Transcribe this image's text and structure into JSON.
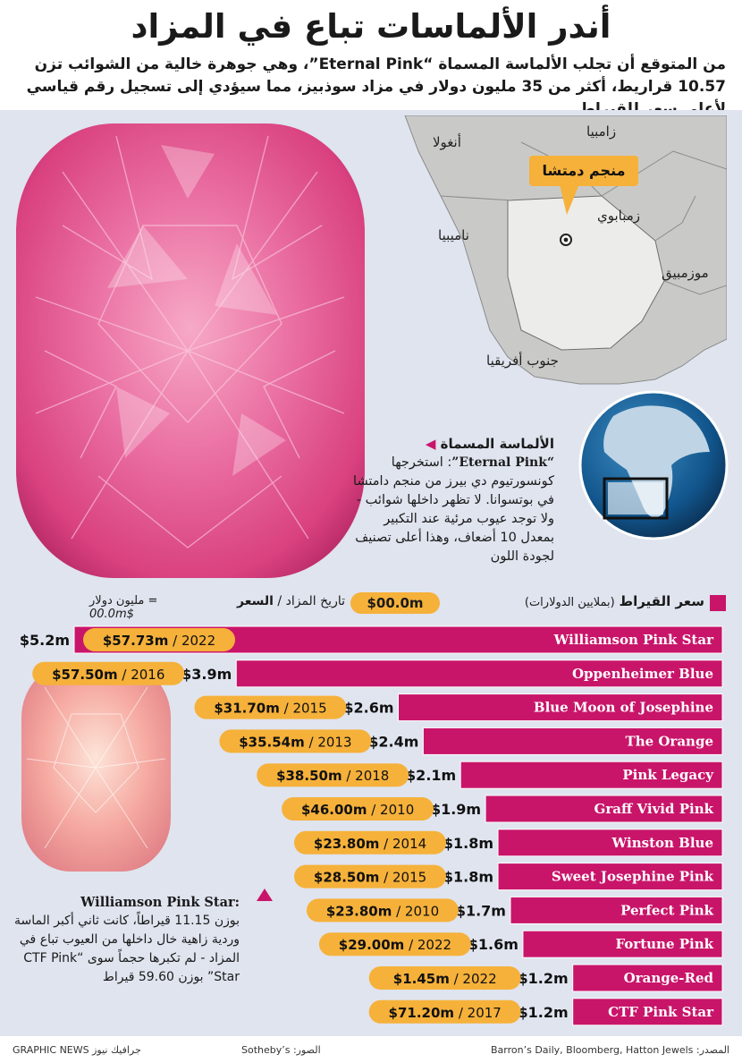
{
  "title": "أندر الألماسات تباع في المزاد",
  "subtitle": "من المتوقع أن تجلب الألماسة المسماة “Eternal Pink”، وهي جوهرة خالية من الشوائب تزن 10.57 قراريط، أكثر من 35 مليون دولار في مزاد سوذبيز، مما سيؤدي إلى تسجيل رقم قياسي لأعلى سعر للقيراط",
  "map": {
    "labels": [
      "زامبيا",
      "أنغولا",
      "زمبابوي",
      "ناميبيا",
      "موزمبيق",
      "جنوب أفريقيا"
    ],
    "mine_label": "منجم دمتشا"
  },
  "eternal_pink": {
    "heading": "الألماسة المسماة",
    "name": "“Eternal Pink”",
    "text": ": استخرجها كونسورتيوم دي بيرز من منجم دامتشا في بوتسوانا. لا تظهر داخلها شوائب - ولا توجد عيوب مرئية عند التكبير بمعدل 10 أضعاف، وهذا أعلى تصنيف لجودة اللون"
  },
  "williamson": {
    "name": "Williamson Pink Star:",
    "text": "بوزن 11.15 قيراطاً، كانت ثاني أكبر الماسة وردية زاهية خال داخلها من العيوب تباع في المزاد - لم تكبرها حجماً سوى “CTF Pink Star” بوزن 59.60 قيراط"
  },
  "legend": {
    "ppc_label": "سعر القيراط",
    "ppc_unit": "(بملايين الدولارات)",
    "price_label": "السعر",
    "date_label": "تاريخ المزاد /",
    "sample_value": "$00.0m",
    "unit_note_value": "$00.0m",
    "unit_note_text": "= مليون دولار"
  },
  "colors": {
    "bar": "#c8156a",
    "price_pill": "#f6b13a",
    "panel": "#dfe4ef"
  },
  "chart_data": {
    "type": "bar",
    "orientation": "horizontal",
    "title": "سعر القيراط",
    "unit": "millions USD per carat",
    "categories": [
      "Williamson Pink Star",
      "Oppenheimer Blue",
      "Blue Moon of Josephine",
      "The Orange",
      "Pink Legacy",
      "Graff Vivid Pink",
      "Winston Blue",
      "Sweet Josephine Pink",
      "Perfect Pink",
      "Fortune Pink",
      "Orange-Red",
      "CTF Pink Star"
    ],
    "values": [
      5.2,
      3.9,
      2.6,
      2.4,
      2.1,
      1.9,
      1.8,
      1.8,
      1.7,
      1.6,
      1.2,
      1.2
    ],
    "value_labels": [
      "$5.2m",
      "$3.9m",
      "$2.6m",
      "$2.4m",
      "$2.1m",
      "$1.9m",
      "$1.8m",
      "$1.8m",
      "$1.7m",
      "$1.6m",
      "$1.2m",
      "$1.2m"
    ],
    "sale_prices": [
      "$57.73m",
      "$57.50m",
      "$31.70m",
      "$35.54m",
      "$38.50m",
      "$46.00m",
      "$23.80m",
      "$28.50m",
      "$23.80m",
      "$29.00m",
      "$1.45m",
      "$71.20m"
    ],
    "sale_years": [
      "2022",
      "2016",
      "2015",
      "2013",
      "2018",
      "2010",
      "2014",
      "2015",
      "2010",
      "2022",
      "2022",
      "2017"
    ],
    "xlim": [
      0,
      5.2
    ],
    "grid": false,
    "legend": "top"
  },
  "footer": {
    "sources": "المصدر: Barron’s Daily, Bloomberg, Hatton Jewels",
    "photos": "الصور: Sotheby’s",
    "credit": "GRAPHIC NEWS جرافيك نيوز"
  }
}
